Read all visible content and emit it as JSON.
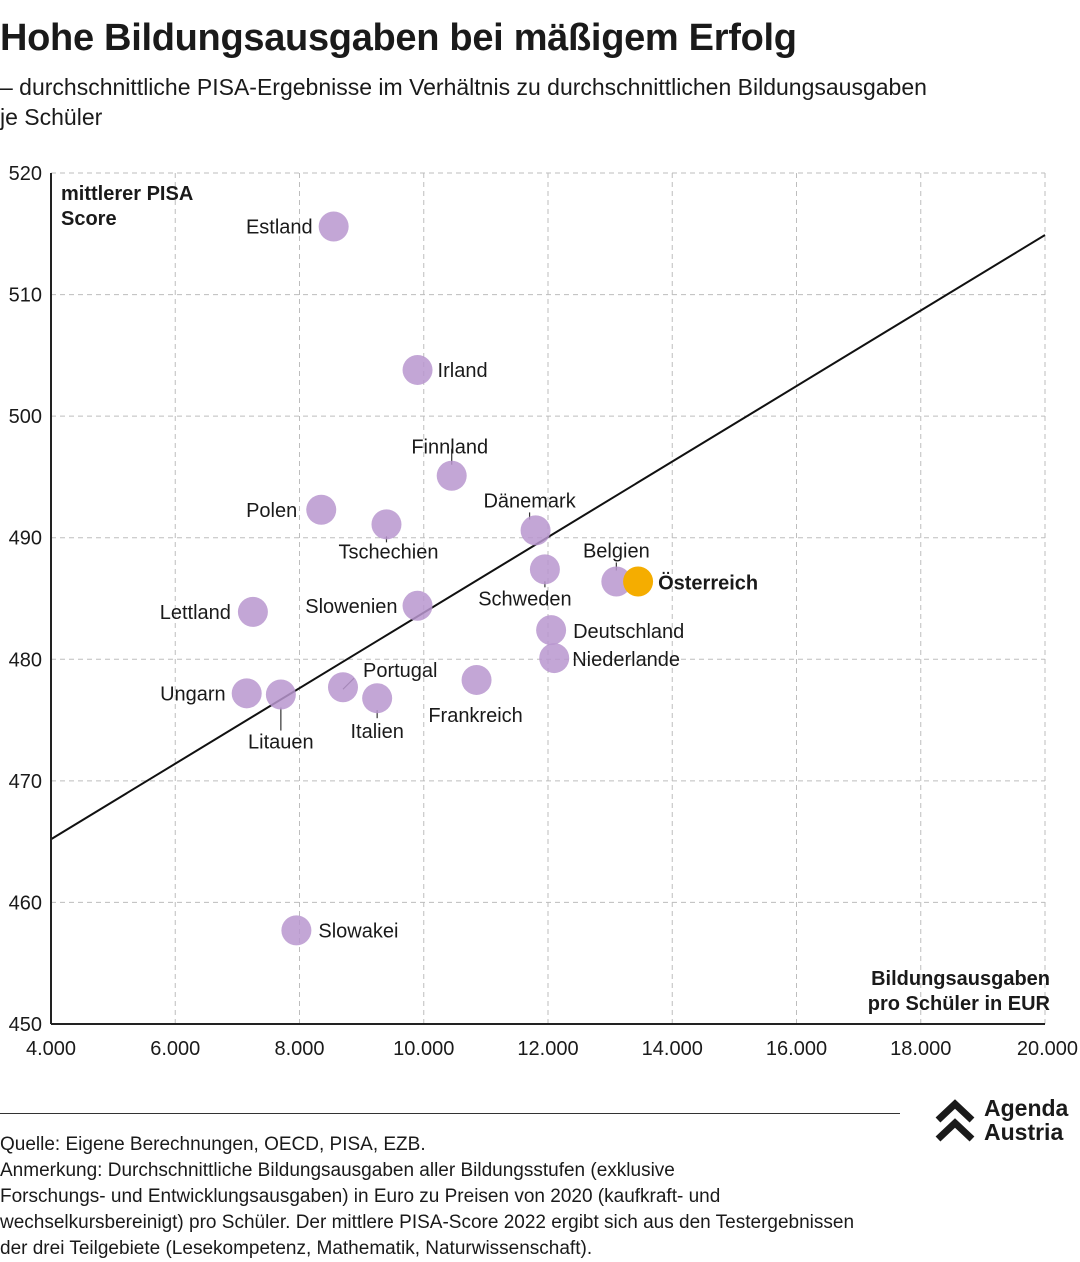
{
  "header": {
    "title": "Hohe Bildungsausgaben bei mäßigem Erfolg",
    "subtitle_line1": "– durchschnittliche PISA-Ergebnisse im Verhältnis zu durchschnittlichen Bildungsausgaben",
    "subtitle_line2": "je Schüler"
  },
  "colors": {
    "point": "#b997cf",
    "highlight": "#f5ad00",
    "grid": "#bdbdbd",
    "axis": "#222222",
    "text": "#1a1a1a"
  },
  "chart_data": {
    "type": "scatter",
    "ylabel_line1": "mittlerer PISA",
    "ylabel_line2": "Score",
    "xlabel_line1": "Bildungsausgaben",
    "xlabel_line2": "pro Schüler in EUR",
    "xlim": [
      4000,
      20000
    ],
    "ylim": [
      450,
      520
    ],
    "x_ticks": [
      4000,
      6000,
      8000,
      10000,
      12000,
      14000,
      16000,
      18000,
      20000
    ],
    "x_tick_labels": [
      "4.000",
      "6.000",
      "8.000",
      "10.000",
      "12.000",
      "14.000",
      "16.000",
      "18.000",
      "20.000"
    ],
    "y_ticks": [
      450,
      460,
      470,
      480,
      490,
      500,
      510,
      520
    ],
    "y_tick_labels": [
      "450",
      "460",
      "470",
      "480",
      "490",
      "500",
      "510",
      "520"
    ],
    "grid": true,
    "trendline": {
      "x": [
        4000,
        20000
      ],
      "y": [
        465.2,
        514.9
      ]
    },
    "points": [
      {
        "label": "Estland",
        "x": 8550,
        "y": 515.6
      },
      {
        "label": "Irland",
        "x": 9900,
        "y": 503.8
      },
      {
        "label": "Finnland",
        "x": 10450,
        "y": 495.1
      },
      {
        "label": "Polen",
        "x": 8350,
        "y": 492.3
      },
      {
        "label": "Tschechien",
        "x": 9400,
        "y": 491.1
      },
      {
        "label": "Dänemark",
        "x": 11800,
        "y": 490.6
      },
      {
        "label": "Schweden",
        "x": 11950,
        "y": 487.4
      },
      {
        "label": "Belgien",
        "x": 13100,
        "y": 486.4
      },
      {
        "label": "Österreich",
        "x": 13450,
        "y": 486.4,
        "highlight": true
      },
      {
        "label": "Lettland",
        "x": 7250,
        "y": 483.9
      },
      {
        "label": "Slowenien",
        "x": 9900,
        "y": 484.4
      },
      {
        "label": "Deutschland",
        "x": 12050,
        "y": 482.4
      },
      {
        "label": "Niederlande",
        "x": 12100,
        "y": 480.1
      },
      {
        "label": "Portugal",
        "x": 8700,
        "y": 477.7
      },
      {
        "label": "Frankreich",
        "x": 10850,
        "y": 478.3
      },
      {
        "label": "Ungarn",
        "x": 7150,
        "y": 477.2
      },
      {
        "label": "Litauen",
        "x": 7700,
        "y": 477.1
      },
      {
        "label": "Italien",
        "x": 9250,
        "y": 476.8
      },
      {
        "label": "Slowakei",
        "x": 7950,
        "y": 457.7
      }
    ]
  },
  "logo": {
    "line1": "Agenda",
    "line2": "Austria"
  },
  "footer": {
    "source": "Quelle: Eigene Berechnungen, OECD, PISA, EZB.",
    "note_line1": "Anmerkung: Durchschnittliche Bildungsausgaben aller Bildungsstufen (exklusive",
    "note_line2": "Forschungs- und Entwicklungsausgaben) in Euro zu Preisen von 2020 (kaufkraft- und",
    "note_line3": "wechselkursbereinigt) pro Schüler. Der mittlere PISA-Score 2022 ergibt sich aus den Testergebnissen",
    "note_line4": "der drei Teilgebiete (Lesekompetenz, Mathematik, Naturwissenschaft)."
  }
}
